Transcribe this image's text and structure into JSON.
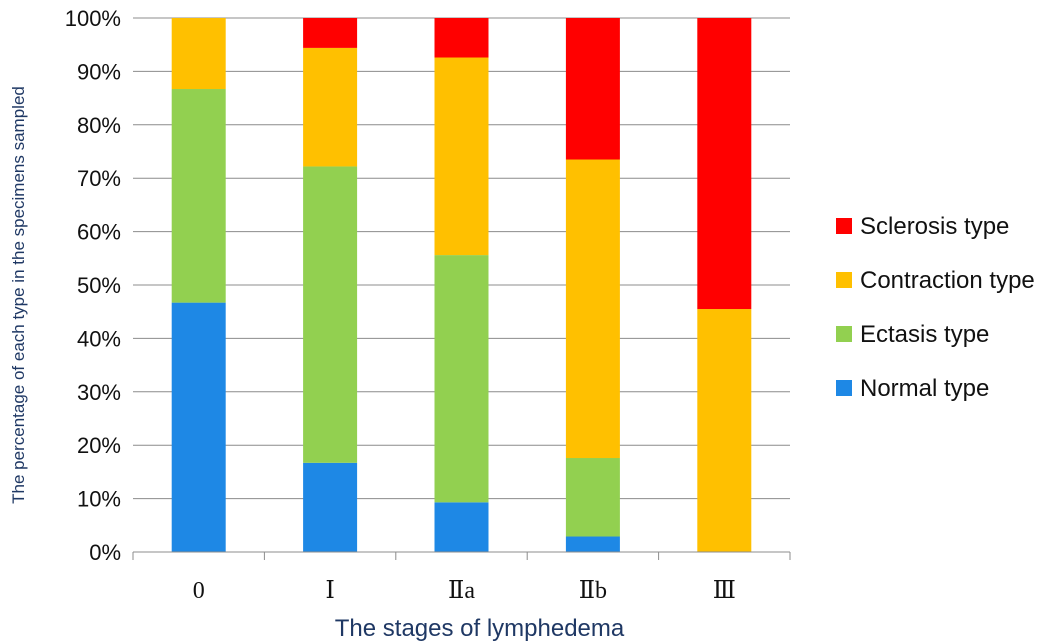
{
  "chart_data": {
    "type": "bar",
    "stacked": true,
    "categories": [
      "0",
      "Ⅰ",
      "Ⅱa",
      "Ⅱb",
      "Ⅲ"
    ],
    "series": [
      {
        "name": "Normal type",
        "color": "#1e88e5",
        "values": [
          46.7,
          16.7,
          9.3,
          2.9,
          0
        ]
      },
      {
        "name": "Ectasis type",
        "color": "#92d050",
        "values": [
          40.0,
          55.5,
          46.3,
          14.7,
          0
        ]
      },
      {
        "name": "Contraction type",
        "color": "#ffc000",
        "values": [
          13.3,
          22.2,
          37.0,
          55.9,
          45.5
        ]
      },
      {
        "name": "Sclerosis type",
        "color": "#ff0000",
        "values": [
          0,
          5.6,
          7.4,
          26.5,
          54.5
        ]
      }
    ],
    "legend_order": [
      "Sclerosis type",
      "Contraction type",
      "Ectasis type",
      "Normal type"
    ],
    "y_ticks": [
      "0%",
      "10%",
      "20%",
      "30%",
      "40%",
      "50%",
      "60%",
      "70%",
      "80%",
      "90%",
      "100%"
    ],
    "ylim": [
      0,
      100
    ],
    "xlabel": "The stages of lymphedema",
    "ylabel": "The percentage of each type in the specimens sampled",
    "grid": true,
    "legend_position": "right"
  }
}
